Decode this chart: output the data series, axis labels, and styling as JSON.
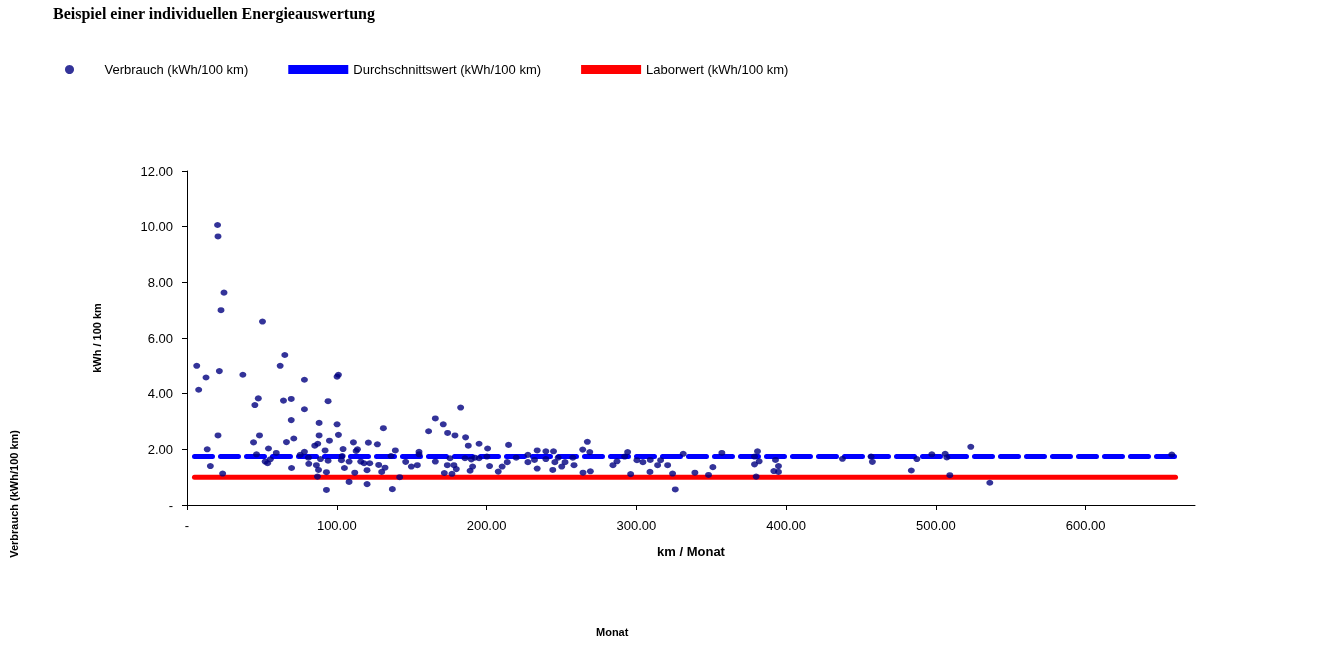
{
  "chart_data": {
    "type": "scatter",
    "title": "Beispiel einer individuellen Energieauswertung",
    "xlabel": "km / Monat",
    "ylabel": "kWh / 100 km",
    "annotations": [
      "Verbrauch (kWh/100 km)",
      "Monat"
    ],
    "xlim": [
      0,
      673
    ],
    "xticks": [
      {
        "value": 0,
        "label": "-"
      },
      {
        "value": 100,
        "label": "100.00"
      },
      {
        "value": 200,
        "label": "200.00"
      },
      {
        "value": 300,
        "label": "300.00"
      },
      {
        "value": 400,
        "label": "400.00"
      },
      {
        "value": 500,
        "label": "500.00"
      },
      {
        "value": 600,
        "label": "600.00"
      }
    ],
    "ylim": [
      0,
      12
    ],
    "yticks": [
      {
        "value": 0,
        "label": "-"
      },
      {
        "value": 2,
        "label": "2.00"
      },
      {
        "value": 4,
        "label": "4.00"
      },
      {
        "value": 6,
        "label": "6.00"
      },
      {
        "value": 8,
        "label": "8.00"
      },
      {
        "value": 10,
        "label": "10.00"
      },
      {
        "value": 12,
        "label": "12.00"
      }
    ],
    "grid": false,
    "legend": "top",
    "series": [
      {
        "name": "Verbrauch (kWh/100 km)",
        "color": "#000080",
        "marker": "circle",
        "x": [
          6.5,
          7.8,
          12.7,
          20.4,
          20.7,
          24.7,
          22.7,
          21.6,
          20.7,
          13.5,
          15.6,
          23.8,
          37.3,
          50.4,
          45.3,
          47.6,
          44.4,
          48.4,
          46.4,
          54.4,
          52.2,
          53.8,
          55.6,
          59.6,
          62.2,
          65.3,
          64.4,
          69.6,
          69.6,
          66.4,
          71.3,
          69.8,
          78.4,
          78.4,
          75.6,
          78.4,
          81.1,
          81.3,
          85.3,
          87.3,
          88.2,
          88.2,
          92.2,
          89.1,
          86.4,
          87.8,
          87.1,
          93.1,
          93.1,
          94.2,
          95.1,
          94.2,
          100.2,
          101.1,
          100.2,
          101.1,
          104.2,
          103.6,
          103.1,
          105.1,
          108.2,
          108.2,
          111.1,
          113.8,
          112.9,
          112,
          116,
          118.2,
          120.2,
          120.2,
          121.1,
          122,
          127.1,
          128,
          130,
          132.2,
          131.1,
          137.1,
          139.1,
          136.2,
          142,
          146,
          149.8,
          153.8,
          154.9,
          154.9,
          161.3,
          165.8,
          171.1,
          182.7,
          174,
          178.9,
          186,
          187.8,
          195,
          200.7,
          214.7,
          165.8,
          171.8,
          176.9,
          173.8,
          175.6,
          178.2,
          179.8,
          185.6,
          189,
          190.7,
          189.8,
          192.2,
          195,
          200.2,
          202,
          207.8,
          210.4,
          213.8,
          219.8,
          227.6,
          227.6,
          233.8,
          233.8,
          232,
          239.6,
          239.6,
          244.7,
          244.2,
          245.6,
          247.8,
          250.2,
          252.4,
          257.6,
          258.4,
          264.2,
          267.3,
          268.9,
          264.4,
          269.3,
          284.4,
          287.1,
          292.2,
          294.2,
          296.2,
          300.4,
          304.4,
          309.3,
          309.1,
          314.2,
          316.2,
          320.9,
          324.2,
          326,
          331.3,
          339.1,
          348.2,
          351.1,
          357.1,
          378.9,
          380.9,
          382,
          378.9,
          380,
          392.9,
          394.9,
          391.8,
          394.9,
          437.6,
          456.7,
          457.6,
          483.6,
          487.3,
          497.3,
          506.2,
          507.3,
          509.3,
          523.3,
          536,
          657.5
        ],
        "values": [
          5.0,
          4.14,
          4.58,
          10.06,
          9.65,
          7.63,
          7.0,
          4.81,
          2.5,
          2.0,
          1.4,
          1.13,
          4.68,
          6.59,
          3.59,
          3.83,
          2.25,
          2.5,
          1.82,
          2.03,
          1.56,
          1.5,
          1.64,
          1.87,
          5.0,
          5.39,
          3.75,
          3.81,
          3.05,
          2.26,
          2.39,
          1.33,
          4.5,
          3.44,
          1.8,
          1.91,
          1.7,
          1.48,
          2.13,
          2.2,
          2.95,
          2.5,
          1.96,
          1.65,
          1.43,
          1.26,
          1.02,
          1.18,
          0.54,
          3.73,
          2.31,
          1.59,
          2.9,
          2.52,
          4.61,
          4.68,
          2.01,
          1.76,
          1.61,
          1.33,
          1.56,
          0.83,
          2.25,
          2.0,
          1.94,
          1.16,
          1.56,
          1.5,
          1.25,
          0.75,
          2.24,
          1.5,
          2.18,
          1.44,
          1.19,
          1.34,
          2.76,
          0.57,
          1.96,
          1.76,
          1.0,
          1.55,
          1.38,
          1.43,
          1.91,
          1.82,
          2.65,
          3.11,
          2.9,
          3.5,
          2.59,
          2.5,
          2.43,
          2.13,
          2.2,
          2.03,
          2.16,
          1.56,
          1.15,
          1.12,
          1.43,
          1.68,
          1.43,
          1.29,
          1.68,
          1.23,
          1.38,
          1.64,
          1.7,
          1.68,
          1.74,
          1.4,
          1.2,
          1.38,
          1.54,
          1.7,
          1.8,
          1.54,
          1.96,
          1.31,
          1.62,
          1.93,
          1.65,
          1.93,
          1.26,
          1.54,
          1.7,
          1.38,
          1.54,
          1.7,
          1.43,
          1.99,
          2.27,
          1.9,
          1.16,
          1.21,
          1.43,
          1.57,
          1.74,
          1.9,
          1.11,
          1.61,
          1.54,
          1.62,
          1.19,
          1.43,
          1.61,
          1.43,
          1.13,
          0.56,
          1.84,
          1.16,
          1.08,
          1.36,
          1.87,
          1.74,
          1.93,
          1.57,
          1.46,
          1.02,
          1.62,
          1.4,
          1.22,
          1.19,
          1.66,
          1.74,
          1.55,
          1.24,
          1.65,
          1.82,
          1.84,
          1.71,
          1.07,
          2.09,
          0.8,
          1.81
        ]
      },
      {
        "name": "Durchschnittswert (kWh/100 km)",
        "type": "line",
        "color": "#0000ff",
        "marker": "none",
        "line_style": "dashed",
        "x": [
          5,
          660
        ],
        "values": [
          1.74,
          1.74
        ]
      },
      {
        "name": "Laborwert (kWh/100 km)",
        "type": "line",
        "color": "#ff0000",
        "marker": "none",
        "line_style": "solid",
        "x": [
          5,
          660
        ],
        "values": [
          1.0,
          1.0
        ]
      }
    ]
  }
}
